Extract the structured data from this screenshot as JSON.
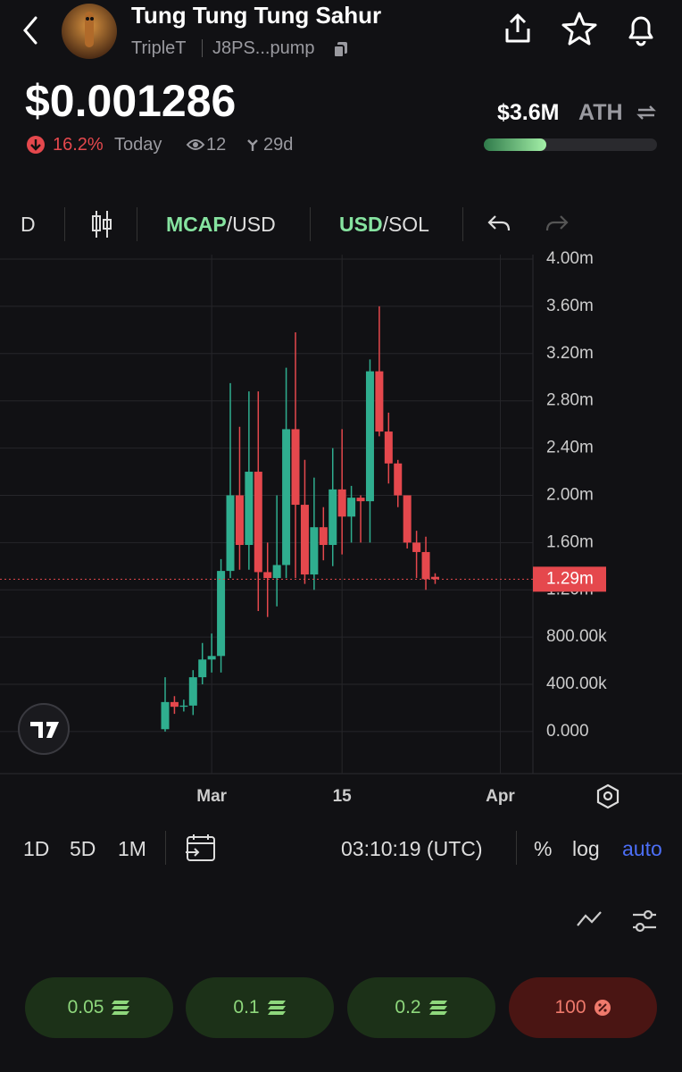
{
  "header": {
    "title": "Tung Tung Tung Sahur",
    "ticker": "TripleT",
    "address": "J8PS...pump"
  },
  "price": {
    "value": "$0.001286",
    "change": "16.2%",
    "period": "Today",
    "views": "12",
    "age": "29d",
    "ath_value": "$3.6M",
    "ath_label": "ATH"
  },
  "toolbar": {
    "interval": "D",
    "mcap": "MCAP",
    "mcap_unit": "/USD",
    "usd": "USD",
    "usd_unit": "/SOL"
  },
  "chart": {
    "type": "candlestick",
    "categories": [
      null,
      null,
      null,
      null,
      null,
      "Mar",
      null,
      null,
      null,
      null,
      null,
      null,
      null,
      null,
      null,
      null,
      null,
      null,
      null,
      "15",
      null,
      null,
      null,
      null,
      null,
      null,
      null,
      null,
      null,
      null,
      null,
      null,
      null,
      null,
      null,
      null,
      "Apr"
    ],
    "open": [
      0.02,
      0.25,
      0.21,
      0.22,
      0.46,
      0.61,
      0.64,
      1.36,
      2.0,
      1.58,
      2.2,
      1.35,
      1.3,
      1.41,
      2.56,
      1.92,
      1.33,
      1.73,
      1.58,
      2.05,
      1.82,
      1.98,
      1.95,
      3.05,
      2.54,
      2.27,
      2.0,
      1.6,
      1.52,
      1.31,
      null,
      null,
      null,
      null,
      null,
      null,
      null
    ],
    "high": [
      0.46,
      0.3,
      0.27,
      0.52,
      0.75,
      0.83,
      1.46,
      2.95,
      2.58,
      2.88,
      2.88,
      1.6,
      2.0,
      3.08,
      3.38,
      2.3,
      2.15,
      1.9,
      2.4,
      2.56,
      2.08,
      2.0,
      3.15,
      3.6,
      2.7,
      2.3,
      2.0,
      1.7,
      1.65,
      1.34,
      null,
      null,
      null,
      null,
      null,
      null,
      null
    ],
    "low": [
      0,
      0.15,
      0.17,
      0.14,
      0.4,
      0.5,
      0.5,
      1.3,
      1.37,
      1.37,
      1.02,
      0.97,
      1.06,
      1.3,
      1.3,
      1.25,
      1.2,
      1.45,
      1.4,
      1.5,
      1.6,
      1.6,
      1.6,
      2.5,
      2.1,
      1.9,
      1.55,
      1.3,
      1.2,
      1.25,
      null,
      null,
      null,
      null,
      null,
      null,
      null
    ],
    "close": [
      0.25,
      0.21,
      0.22,
      0.46,
      0.61,
      0.64,
      1.36,
      2.0,
      1.58,
      2.2,
      1.35,
      1.3,
      1.41,
      2.56,
      1.92,
      1.33,
      1.73,
      1.58,
      2.05,
      1.82,
      1.98,
      1.95,
      3.05,
      2.54,
      2.27,
      2.0,
      1.6,
      1.52,
      1.29,
      1.29,
      null,
      null,
      null,
      null,
      null,
      null,
      null
    ],
    "up_color": "#2fae8f",
    "down_color": "#e5484d",
    "ylim": [
      -0.356,
      4.038
    ],
    "yticks": [
      {
        "value": 0,
        "label": "0.000"
      },
      {
        "value": 0.4,
        "label": "400.00k"
      },
      {
        "value": 0.8,
        "label": "800.00k"
      },
      {
        "value": 1.2,
        "label": "1.20m"
      },
      {
        "value": 1.6,
        "label": "1.60m"
      },
      {
        "value": 2.0,
        "label": "2.00m"
      },
      {
        "value": 2.4,
        "label": "2.40m"
      },
      {
        "value": 2.8,
        "label": "2.80m"
      },
      {
        "value": 3.2,
        "label": "3.20m"
      },
      {
        "value": 3.6,
        "label": "3.60m"
      },
      {
        "value": 4.0,
        "label": "4.00m"
      }
    ],
    "last_price": {
      "value": 1.29,
      "label": "1.29m"
    },
    "grid": true
  },
  "bottom_bar": {
    "ranges": [
      "1D",
      "5D",
      "1M"
    ],
    "time": "03:10:19 (UTC)",
    "options": [
      "%",
      "log",
      "auto"
    ]
  },
  "buy_buttons": [
    "0.05",
    "0.1",
    "0.2",
    "100"
  ]
}
